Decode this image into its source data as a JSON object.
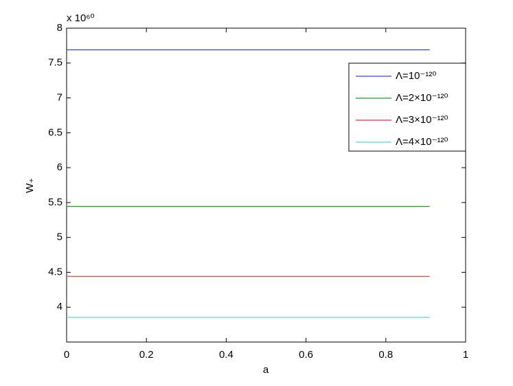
{
  "chart_data": {
    "type": "line",
    "x_multiplier": "x 10⁶⁰",
    "xlabel": "a",
    "ylabel": "W₊",
    "x": [
      0,
      0.91
    ],
    "series": [
      {
        "name": "Λ=10⁻¹²⁰",
        "color": "#3344dd",
        "values": [
          7.69,
          7.69
        ]
      },
      {
        "name": "Λ=2×10⁻¹²⁰",
        "color": "#1f9a1f",
        "values": [
          5.445,
          5.445
        ]
      },
      {
        "name": "Λ=3×10⁻¹²⁰",
        "color": "#e83030",
        "values": [
          4.442,
          4.442
        ]
      },
      {
        "name": "Λ=4×10⁻¹²⁰",
        "color": "#55e0c0",
        "values": [
          3.853,
          3.853
        ]
      }
    ],
    "xlim": [
      0,
      1
    ],
    "xticks": [
      0,
      0.2,
      0.4,
      0.6,
      0.8,
      1
    ],
    "ylim": [
      3.5,
      8
    ],
    "yticks": [
      4,
      4.5,
      5,
      5.5,
      6,
      6.5,
      7,
      7.5,
      8
    ],
    "legend": "top-right",
    "grid": false
  }
}
